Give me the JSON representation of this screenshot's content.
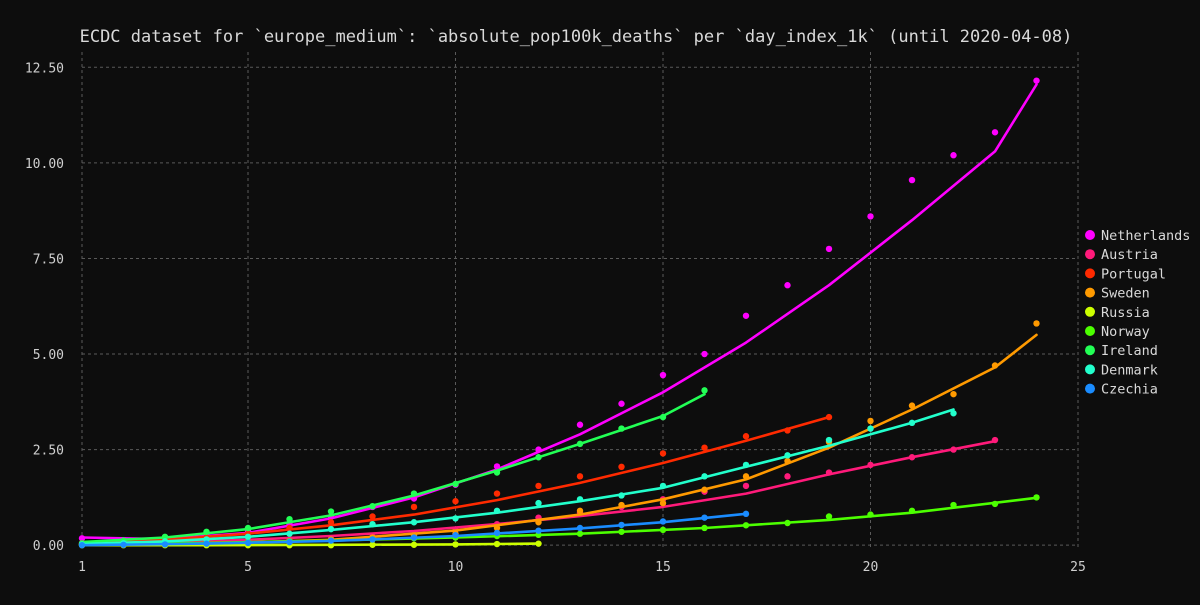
{
  "chart_data": {
    "type": "line",
    "title": "ECDC dataset for `europe_medium`: `absolute_pop100k_deaths` per `day_index_1k` (until 2020-04-08)",
    "xlabel": "",
    "ylabel": "",
    "xlim": [
      1,
      25
    ],
    "ylim": [
      -0.1,
      12.9
    ],
    "x_ticks": [
      1,
      5,
      10,
      15,
      20,
      25
    ],
    "y_ticks": [
      0,
      2.5,
      5,
      7.5,
      10,
      12.5
    ],
    "y_tick_labels": [
      "0.00",
      "2.50",
      "5.00",
      "7.50",
      "10.00",
      "12.50"
    ],
    "grid": true,
    "legend_position": "right",
    "colors": {
      "background": "#0d0d0d",
      "text": "#d9d9d9",
      "grid": "#5a5a5a"
    },
    "series": [
      {
        "name": "Netherlands",
        "color": "#ff00ff",
        "x": [
          1,
          2,
          3,
          4,
          5,
          6,
          7,
          8,
          9,
          10,
          11,
          12,
          13,
          14,
          15,
          16,
          17,
          18,
          19,
          20,
          21,
          22,
          23,
          24
        ],
        "y": [
          0.18,
          0.12,
          0.2,
          0.3,
          0.38,
          0.55,
          0.75,
          1.0,
          1.22,
          1.58,
          2.06,
          2.5,
          3.15,
          3.7,
          4.45,
          5.0,
          6.0,
          6.8,
          7.75,
          8.6,
          9.55,
          10.2,
          10.8,
          12.15
        ],
        "fit": [
          [
            1,
            0.2
          ],
          [
            3,
            0.16
          ],
          [
            5,
            0.32
          ],
          [
            7,
            0.7
          ],
          [
            9,
            1.25
          ],
          [
            11,
            1.98
          ],
          [
            13,
            2.9
          ],
          [
            15,
            4.0
          ],
          [
            17,
            5.3
          ],
          [
            19,
            6.8
          ],
          [
            21,
            8.5
          ],
          [
            23,
            10.3
          ],
          [
            24,
            12.05
          ]
        ]
      },
      {
        "name": "Austria",
        "color": "#ff1a7a",
        "x": [
          1,
          2,
          3,
          4,
          5,
          6,
          7,
          8,
          9,
          10,
          11,
          12,
          13,
          14,
          15,
          16,
          17,
          18,
          19,
          20,
          21,
          22,
          23
        ],
        "y": [
          0.05,
          0.05,
          0.05,
          0.08,
          0.1,
          0.12,
          0.15,
          0.22,
          0.28,
          0.4,
          0.55,
          0.72,
          0.85,
          1.0,
          1.2,
          1.4,
          1.55,
          1.8,
          1.9,
          2.1,
          2.3,
          2.5,
          2.75
        ],
        "fit": [
          [
            1,
            0.03
          ],
          [
            3,
            0.07
          ],
          [
            5,
            0.14
          ],
          [
            7,
            0.24
          ],
          [
            9,
            0.37
          ],
          [
            11,
            0.55
          ],
          [
            13,
            0.76
          ],
          [
            15,
            1.0
          ],
          [
            17,
            1.35
          ],
          [
            19,
            1.85
          ],
          [
            21,
            2.3
          ],
          [
            23,
            2.72
          ]
        ]
      },
      {
        "name": "Portugal",
        "color": "#ff2a00",
        "x": [
          1,
          2,
          3,
          4,
          5,
          6,
          7,
          8,
          9,
          10,
          11,
          12,
          13,
          14,
          15,
          16,
          17,
          18,
          19
        ],
        "y": [
          0.05,
          0.08,
          0.12,
          0.2,
          0.3,
          0.45,
          0.6,
          0.75,
          1.0,
          1.15,
          1.35,
          1.55,
          1.8,
          2.05,
          2.4,
          2.55,
          2.85,
          3.0,
          3.35
        ],
        "fit": [
          [
            1,
            0.06
          ],
          [
            3,
            0.14
          ],
          [
            5,
            0.3
          ],
          [
            7,
            0.52
          ],
          [
            9,
            0.8
          ],
          [
            11,
            1.18
          ],
          [
            13,
            1.63
          ],
          [
            15,
            2.15
          ],
          [
            17,
            2.73
          ],
          [
            19,
            3.35
          ]
        ]
      },
      {
        "name": "Sweden",
        "color": "#ff9a00",
        "x": [
          1,
          2,
          3,
          4,
          5,
          6,
          7,
          8,
          9,
          10,
          11,
          12,
          13,
          14,
          15,
          16,
          17,
          18,
          19,
          20,
          21,
          22,
          23,
          24
        ],
        "y": [
          0.01,
          0.02,
          0.02,
          0.03,
          0.05,
          0.1,
          0.15,
          0.2,
          0.25,
          0.3,
          0.45,
          0.6,
          0.9,
          1.05,
          1.1,
          1.45,
          1.8,
          2.2,
          2.7,
          3.25,
          3.65,
          3.95,
          4.7,
          5.8
        ],
        "fit": [
          [
            1,
            0.02
          ],
          [
            4,
            0.04
          ],
          [
            7,
            0.14
          ],
          [
            10,
            0.38
          ],
          [
            13,
            0.8
          ],
          [
            15,
            1.2
          ],
          [
            17,
            1.72
          ],
          [
            19,
            2.55
          ],
          [
            21,
            3.55
          ],
          [
            23,
            4.65
          ],
          [
            24,
            5.5
          ]
        ]
      },
      {
        "name": "Russia",
        "color": "#ccff00",
        "x": [
          1,
          2,
          3,
          4,
          5,
          6,
          7,
          8,
          9,
          10,
          11,
          12
        ],
        "y": [
          0.0,
          0.0,
          0.0,
          0.0,
          0.0,
          0.0,
          0.0,
          0.01,
          0.01,
          0.02,
          0.03,
          0.04
        ],
        "fit": [
          [
            1,
            0.0
          ],
          [
            4,
            0.0
          ],
          [
            7,
            0.01
          ],
          [
            10,
            0.02
          ],
          [
            12,
            0.04
          ]
        ]
      },
      {
        "name": "Norway",
        "color": "#4cff00",
        "x": [
          1,
          2,
          3,
          4,
          5,
          6,
          7,
          8,
          9,
          10,
          11,
          12,
          13,
          14,
          15,
          16,
          17,
          18,
          19,
          20,
          21,
          22,
          23,
          24
        ],
        "y": [
          0.02,
          0.03,
          0.05,
          0.06,
          0.08,
          0.1,
          0.12,
          0.15,
          0.18,
          0.2,
          0.24,
          0.27,
          0.3,
          0.35,
          0.4,
          0.45,
          0.52,
          0.58,
          0.75,
          0.8,
          0.9,
          1.05,
          1.08,
          1.25
        ],
        "fit": [
          [
            1,
            0.03
          ],
          [
            4,
            0.06
          ],
          [
            7,
            0.12
          ],
          [
            10,
            0.2
          ],
          [
            13,
            0.3
          ],
          [
            16,
            0.45
          ],
          [
            19,
            0.66
          ],
          [
            21,
            0.85
          ],
          [
            24,
            1.24
          ]
        ]
      },
      {
        "name": "Ireland",
        "color": "#22ff55",
        "x": [
          1,
          2,
          3,
          4,
          5,
          6,
          7,
          8,
          9,
          10,
          11,
          12,
          13,
          14,
          15,
          16
        ],
        "y": [
          0.05,
          0.12,
          0.22,
          0.35,
          0.45,
          0.68,
          0.88,
          1.02,
          1.35,
          1.6,
          1.9,
          2.3,
          2.65,
          3.05,
          3.35,
          4.05
        ],
        "fit": [
          [
            1,
            0.08
          ],
          [
            3,
            0.2
          ],
          [
            5,
            0.42
          ],
          [
            7,
            0.78
          ],
          [
            9,
            1.3
          ],
          [
            11,
            1.95
          ],
          [
            13,
            2.65
          ],
          [
            15,
            3.38
          ],
          [
            16,
            3.95
          ]
        ]
      },
      {
        "name": "Denmark",
        "color": "#22ffcc",
        "x": [
          1,
          2,
          3,
          4,
          5,
          6,
          7,
          8,
          9,
          10,
          11,
          12,
          13,
          14,
          15,
          16,
          17,
          18,
          19,
          20,
          21,
          22
        ],
        "y": [
          0.02,
          0.05,
          0.1,
          0.15,
          0.22,
          0.3,
          0.42,
          0.55,
          0.6,
          0.7,
          0.9,
          1.1,
          1.2,
          1.3,
          1.55,
          1.8,
          2.1,
          2.35,
          2.75,
          3.05,
          3.2,
          3.45
        ],
        "fit": [
          [
            1,
            0.03
          ],
          [
            3,
            0.1
          ],
          [
            5,
            0.22
          ],
          [
            7,
            0.4
          ],
          [
            9,
            0.6
          ],
          [
            11,
            0.85
          ],
          [
            13,
            1.15
          ],
          [
            15,
            1.5
          ],
          [
            17,
            2.05
          ],
          [
            19,
            2.6
          ],
          [
            21,
            3.2
          ],
          [
            22,
            3.55
          ]
        ]
      },
      {
        "name": "Czechia",
        "color": "#1a8cff",
        "x": [
          1,
          2,
          3,
          4,
          5,
          6,
          7,
          8,
          9,
          10,
          11,
          12,
          13,
          14,
          15,
          16,
          17
        ],
        "y": [
          0.0,
          0.01,
          0.02,
          0.04,
          0.06,
          0.08,
          0.12,
          0.15,
          0.2,
          0.26,
          0.32,
          0.38,
          0.45,
          0.53,
          0.62,
          0.72,
          0.82
        ],
        "fit": [
          [
            1,
            0.0
          ],
          [
            4,
            0.04
          ],
          [
            7,
            0.11
          ],
          [
            10,
            0.24
          ],
          [
            13,
            0.44
          ],
          [
            15,
            0.6
          ],
          [
            17,
            0.82
          ]
        ]
      }
    ]
  }
}
